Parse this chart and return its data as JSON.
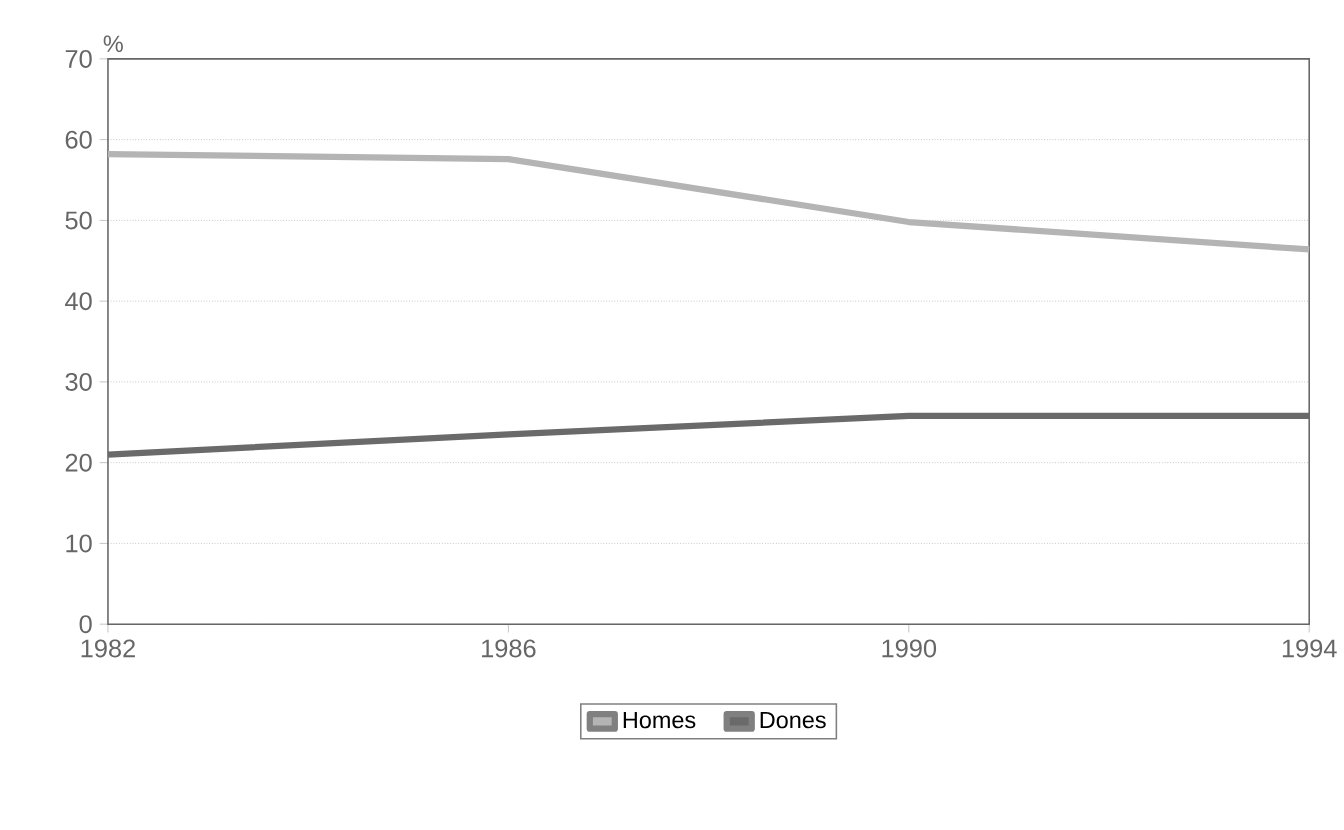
{
  "chart_data": {
    "type": "line",
    "ylabel": "%",
    "x": [
      1982,
      1986,
      1990,
      1994
    ],
    "xlim": [
      1982,
      1994
    ],
    "xticks": [
      1982,
      1986,
      1990,
      1994
    ],
    "ylim": [
      0,
      70
    ],
    "yticks": [
      0,
      10,
      20,
      30,
      40,
      50,
      60,
      70
    ],
    "series": [
      {
        "name": "Homes",
        "color": "#b4b4b4",
        "values": [
          58.2,
          57.6,
          49.8,
          46.4
        ]
      },
      {
        "name": "Dones",
        "color": "#6a6a6a",
        "values": [
          21,
          23.5,
          25.8,
          25.8
        ]
      }
    ],
    "grid": "y",
    "legend": "bottom",
    "line_style": "solid"
  }
}
